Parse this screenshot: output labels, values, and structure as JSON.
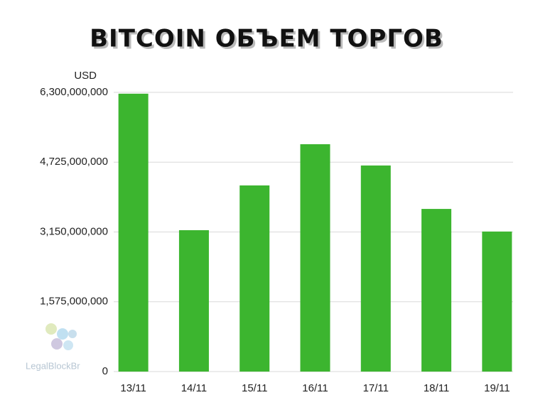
{
  "chart_data": {
    "type": "bar",
    "title": "BITCOIN ОБЪЕМ ТОРГОВ",
    "ylabel": "USD",
    "watermark": "LegalBlockBr",
    "categories": [
      "13/11",
      "14/11",
      "15/11",
      "16/11",
      "17/11",
      "18/11",
      "19/11"
    ],
    "values": [
      6270000000,
      3190000000,
      4200000000,
      5130000000,
      4650000000,
      3670000000,
      3160000000
    ],
    "color": "#3cb52f",
    "ylim": [
      0,
      6300000000
    ],
    "yticks": [
      0,
      {
        "value": 1575000000,
        "label": "1,575,000,000"
      },
      {
        "value": 3150000000,
        "label": "3,150,000,000"
      },
      {
        "value": 4725000000,
        "label": "4,725,000,000"
      },
      {
        "value": 6300000000,
        "label": "6,300,000,000"
      }
    ],
    "grid": true
  }
}
